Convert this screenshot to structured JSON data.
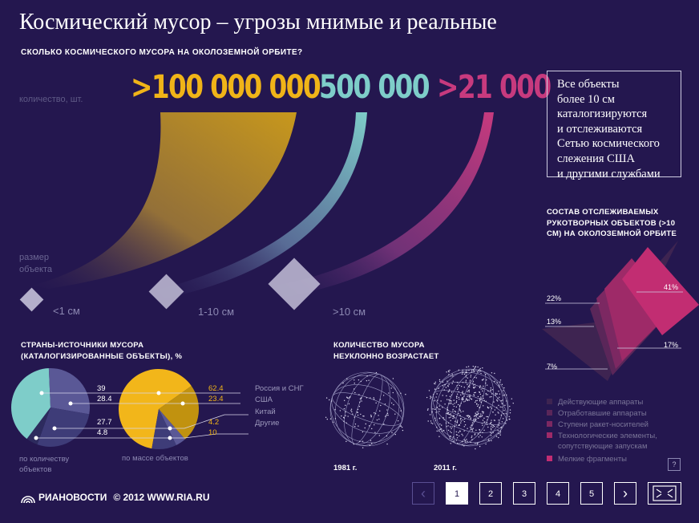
{
  "header": {
    "title": "Космический мусор – угрозы мнимые и реальные",
    "subtitle": "СКОЛЬКО КОСМИЧЕСКОГО МУСОРА НА ОКОЛОЗЕМНОЙ ОРБИТЕ?"
  },
  "quantity": {
    "label": "количество, шт.",
    "size_label": "размер объекта",
    "groups": [
      {
        "count": ">100 000 000",
        "size": "<1 см",
        "color": "#f0b418"
      },
      {
        "count": "500 000",
        "size": "1-10 см",
        "color": "#7ecdc9"
      },
      {
        "count": ">21 000",
        "size": ">10 см",
        "color": "#c73a7e"
      }
    ]
  },
  "info_box": {
    "lines": [
      "Все объекты",
      "более 10 см",
      "каталогизируются",
      "и отслеживаются",
      "Сетью космического",
      "слежения США",
      "и другими службами"
    ]
  },
  "composition": {
    "title": "СОСТАВ ОТСЛЕЖИВАЕМЫХ РУКОТВОРНЫХ ОБЪЕКТОВ (>10 СМ) НА ОКОЛОЗЕМНОЙ ОРБИТЕ",
    "legend": [
      {
        "label": "Действующие аппараты",
        "color": "#3e2451"
      },
      {
        "label": "Отработавшие аппараты",
        "color": "#5a2659"
      },
      {
        "label": "Ступени ракет-носителей",
        "color": "#7c2862"
      },
      {
        "label": "Технологические элементы, сопутствующие запускам",
        "color": "#9e2a68"
      },
      {
        "label": "Мелкие фрагменты",
        "color": "#c22d72"
      }
    ],
    "help": "?"
  },
  "countries": {
    "title_line1": "СТРАНЫ-ИСТОЧНИКИ МУСОРА",
    "title_line2": "(КАТАЛОГИЗИРОВАННЫЕ ОБЪЕКТЫ), %",
    "by_count_label": "по количеству объектов",
    "by_mass_label": "по массе объектов",
    "names": [
      "Россия и СНГ",
      "США",
      "Китай",
      "Другие"
    ]
  },
  "growth": {
    "title_line1": "КОЛИЧЕСТВО МУСОРА",
    "title_line2": "НЕУКЛОННО ВОЗРАСТАЕТ",
    "years": [
      "1981 г.",
      "2011 г."
    ]
  },
  "footer": {
    "logo_text": "РИАНОВОСТИ",
    "copyright": "© 2012 WWW.RIA.RU",
    "pages": [
      "1",
      "2",
      "3",
      "4",
      "5"
    ],
    "prev": "‹",
    "next": "›"
  },
  "chart_data": [
    {
      "type": "bar",
      "title": "СКОЛЬКО КОСМИЧЕСКОГО МУСОРА НА ОКОЛОЗЕМНОЙ ОРБИТЕ?",
      "categories": [
        "<1 см",
        "1-10 см",
        ">10 см"
      ],
      "values": [
        100000000,
        500000,
        21000
      ],
      "value_labels": [
        ">100 000 000",
        "500 000",
        ">21 000"
      ],
      "ylabel": "количество, шт.",
      "xlabel": "размер объекта"
    },
    {
      "type": "pie",
      "title": "СОСТАВ ОТСЛЕЖИВАЕМЫХ РУКОТВОРНЫХ ОБЪЕКТОВ (>10 СМ) НА ОКОЛОЗЕМНОЙ ОРБИТЕ",
      "categories": [
        "Действующие аппараты",
        "Отработавшие аппараты",
        "Ступени ракет-носителей",
        "Технологические элементы, сопутствующие запускам",
        "Мелкие фрагменты"
      ],
      "values": [
        7,
        22,
        13,
        17,
        41
      ],
      "value_labels": [
        "7%",
        "22%",
        "13%",
        "17%",
        "41%"
      ]
    },
    {
      "type": "pie",
      "title": "по количеству объектов",
      "categories": [
        "Россия и СНГ",
        "США",
        "Китай",
        "Другие"
      ],
      "values": [
        39,
        28.4,
        27.7,
        4.8
      ],
      "colors": [
        "#7ecdc9",
        "#5a5896",
        "#3e3c78",
        "#2d2b5e"
      ]
    },
    {
      "type": "pie",
      "title": "по массе объектов",
      "categories": [
        "Россия и СНГ",
        "США",
        "Китай",
        "Другие"
      ],
      "values": [
        62.4,
        23.4,
        4.2,
        10
      ],
      "colors": [
        "#f2b61a",
        "#c1920f",
        "#5a5896",
        "#3e3c78"
      ]
    }
  ]
}
